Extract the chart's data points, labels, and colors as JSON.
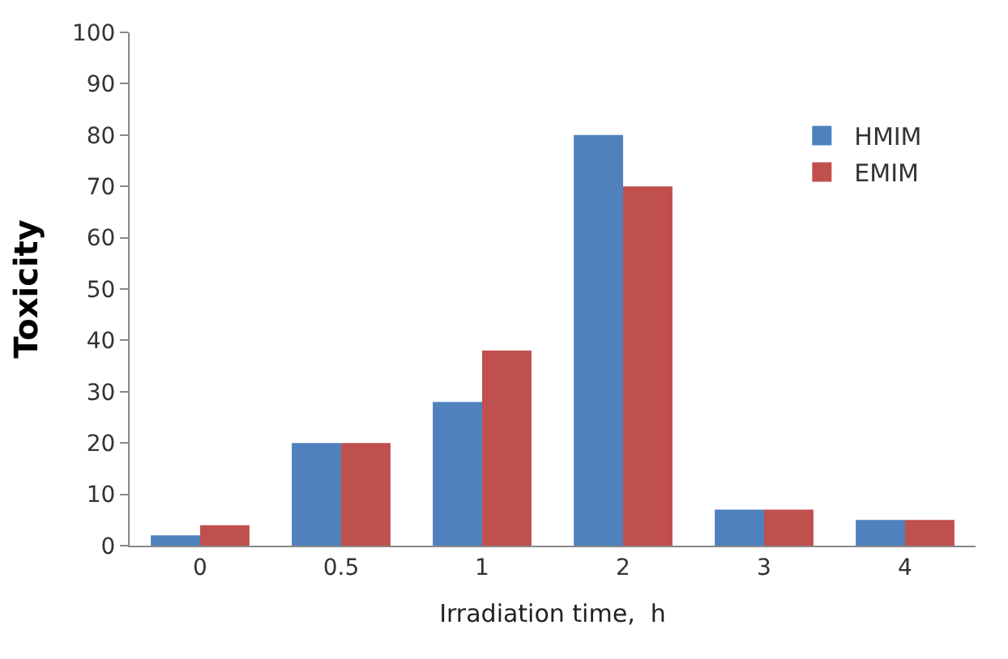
{
  "chart_data": {
    "type": "bar",
    "xlabel": "Irradiation time,  h",
    "ylabel": "Toxicity",
    "categories": [
      "0",
      "0.5",
      "1",
      "2",
      "3",
      "4"
    ],
    "series": [
      {
        "name": "HMIM",
        "color": "#4f81bd",
        "values": [
          2,
          20,
          28,
          80,
          7,
          5
        ]
      },
      {
        "name": "EMIM",
        "color": "#c0504d",
        "values": [
          4,
          20,
          38,
          70,
          7,
          5
        ]
      }
    ],
    "ylim": [
      0,
      100
    ],
    "yticks": [
      0,
      10,
      20,
      30,
      40,
      50,
      60,
      70,
      80,
      90,
      100
    ],
    "legend": "top right"
  }
}
